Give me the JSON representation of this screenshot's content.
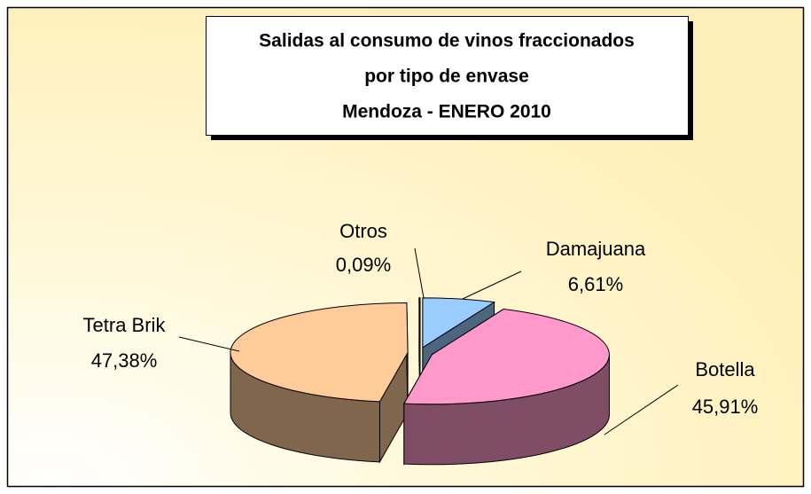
{
  "chart_data": {
    "type": "pie",
    "title": [
      "Salidas al consumo de vinos fraccionados",
      "por tipo de envase",
      "Mendoza - ENERO 2010"
    ],
    "categories": [
      "Damajuana",
      "Botella",
      "Tetra Brik",
      "Otros"
    ],
    "values": [
      6.61,
      45.91,
      47.38,
      0.09
    ],
    "value_labels": [
      "6,61%",
      "45,91%",
      "47,38%",
      "0,09%"
    ],
    "colors": [
      "#99ccff",
      "#ff99cc",
      "#ffcc99",
      "#cce6ff"
    ]
  }
}
